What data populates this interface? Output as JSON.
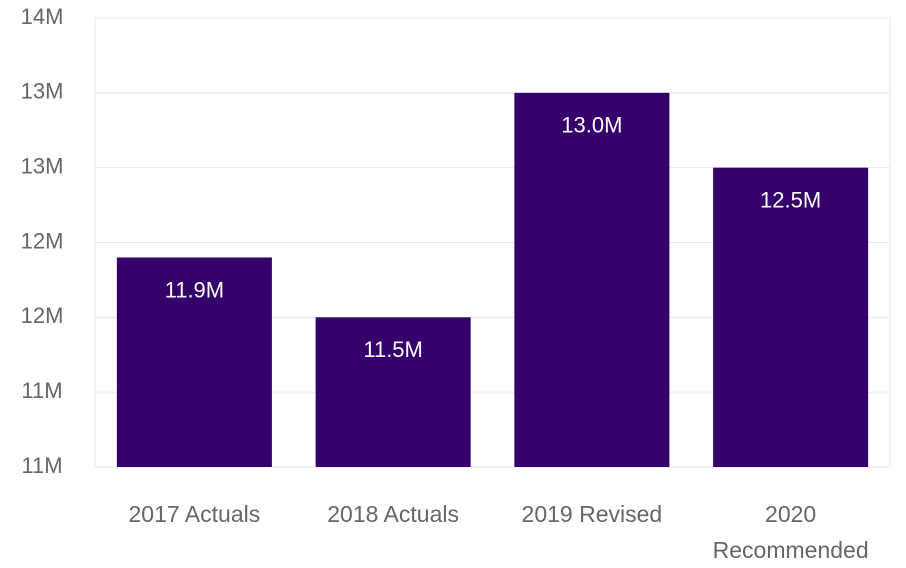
{
  "chart_data": {
    "type": "bar",
    "categories": [
      "2017 Actuals",
      "2018 Actuals",
      "2019 Revised",
      "2020 Recommended"
    ],
    "values": [
      11.9,
      11.5,
      13.0,
      12.5
    ],
    "value_labels": [
      "11.9M",
      "11.5M",
      "13.0M",
      "12.5M"
    ],
    "color": "#35006b",
    "ylim": [
      10.5,
      13.5
    ],
    "yticks": [
      {
        "value": 10.5,
        "label": "11M"
      },
      {
        "value": 11,
        "label": "11M"
      },
      {
        "value": 11.5,
        "label": "12M"
      },
      {
        "value": 12,
        "label": "12M"
      },
      {
        "value": 12.5,
        "label": "13M"
      },
      {
        "value": 13,
        "label": "13M"
      },
      {
        "value": 13.5,
        "label": "14M"
      }
    ],
    "grid": true
  }
}
